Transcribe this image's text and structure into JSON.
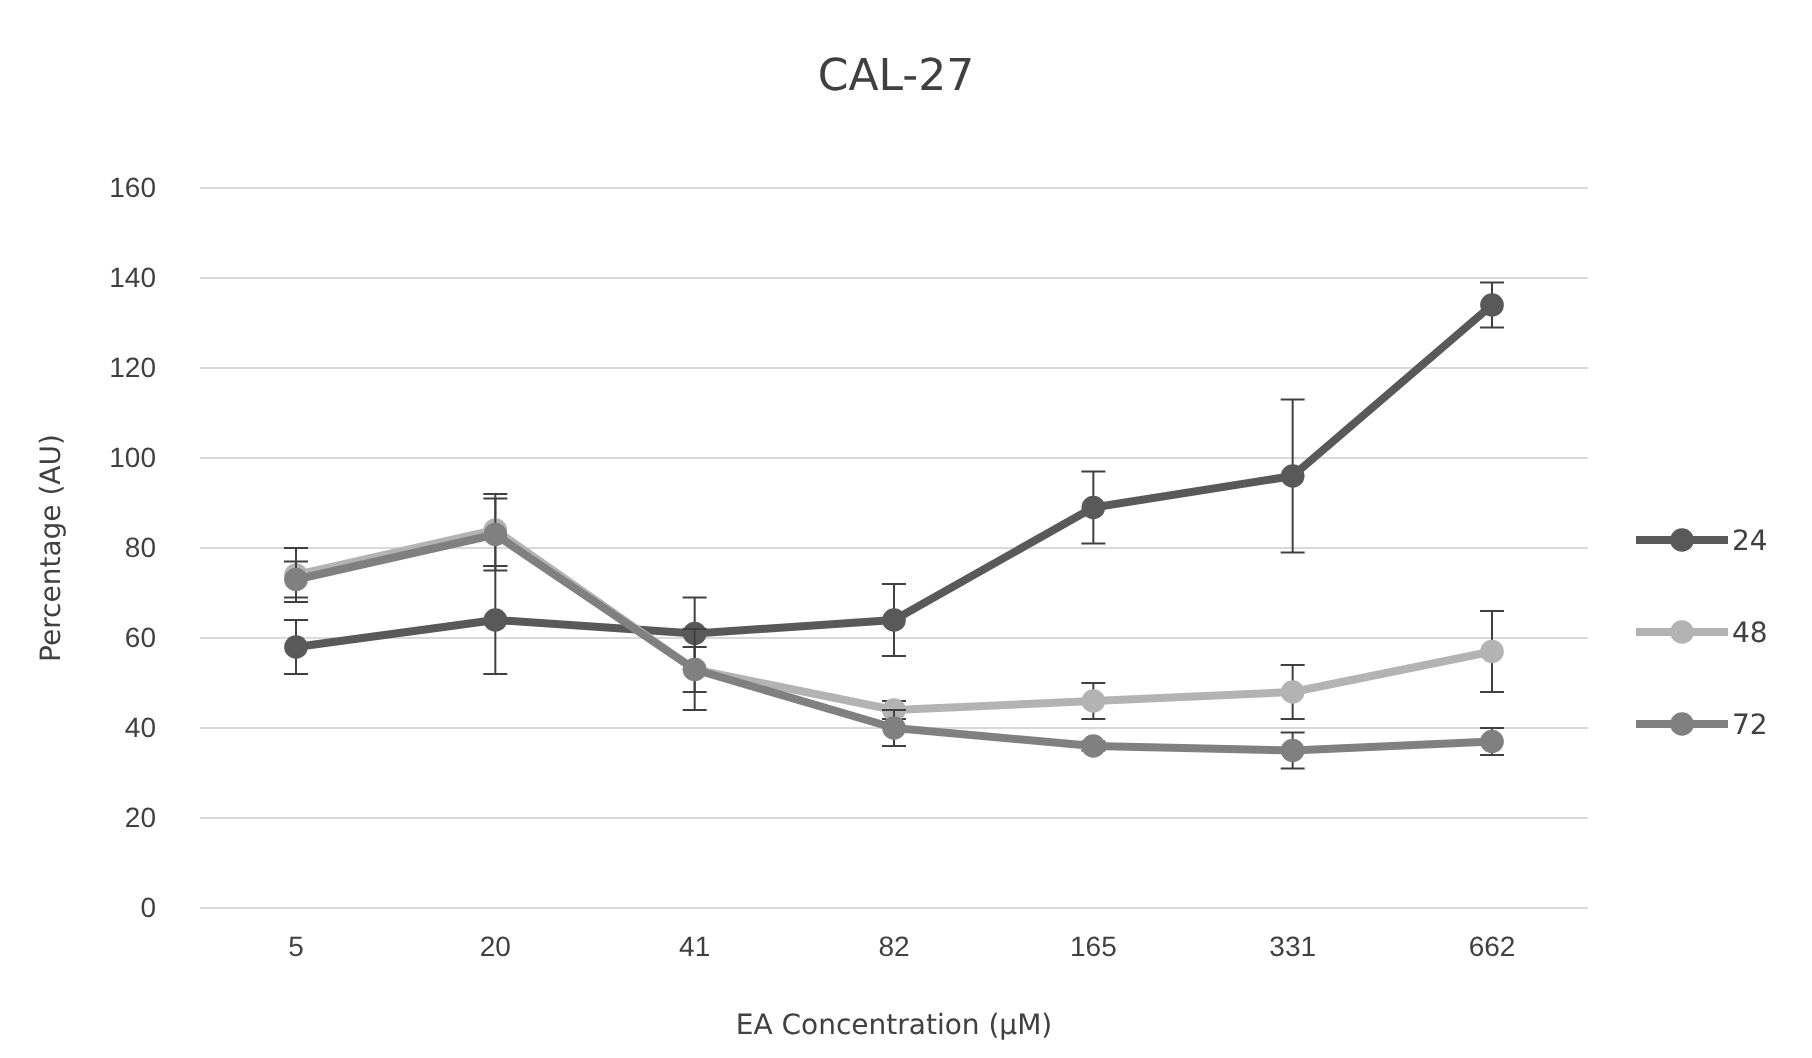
{
  "chart_data": {
    "type": "line",
    "title": "CAL-27",
    "xlabel": "EA Concentration (µM)",
    "ylabel": "Percentage (AU)",
    "categories": [
      "5",
      "20",
      "41",
      "82",
      "165",
      "331",
      "662"
    ],
    "series": [
      {
        "name": "24",
        "color": "#595959",
        "values": [
          58,
          64,
          61,
          64,
          89,
          96,
          134
        ],
        "errors": [
          6,
          12,
          8,
          8,
          8,
          17,
          5
        ]
      },
      {
        "name": "48",
        "color": "#b3b3b3",
        "values": [
          74,
          84,
          53,
          44,
          46,
          48,
          57
        ],
        "errors": [
          6,
          8,
          5,
          2,
          4,
          6,
          9
        ]
      },
      {
        "name": "72",
        "color": "#808080",
        "values": [
          73,
          83,
          53,
          40,
          36,
          35,
          37
        ],
        "errors": [
          4,
          8,
          9,
          4,
          1,
          4,
          3
        ]
      }
    ],
    "ylim": [
      0,
      160
    ],
    "yticks": [
      0,
      20,
      40,
      60,
      80,
      100,
      120,
      140,
      160
    ],
    "grid": "y",
    "legend": "right",
    "marker": "circle",
    "line_style": "solid"
  }
}
